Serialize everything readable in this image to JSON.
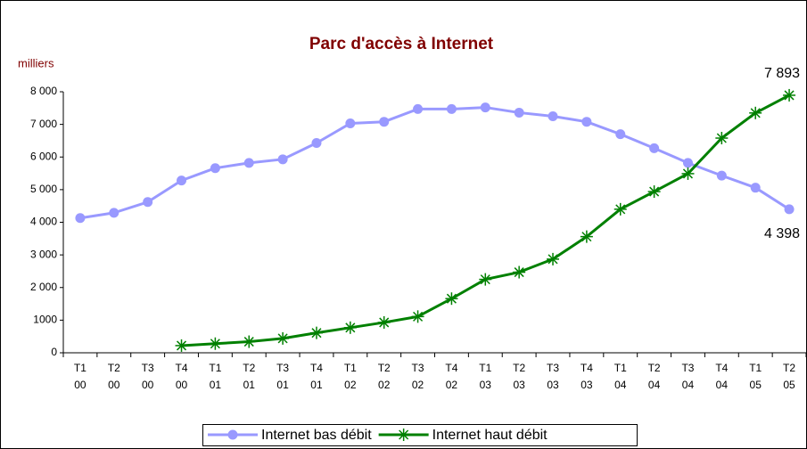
{
  "chart_data": {
    "type": "line",
    "title": "Parc d'accès à Internet",
    "y_label": "milliers",
    "categories": [
      "T1 00",
      "T2 00",
      "T3 00",
      "T4 00",
      "T1 01",
      "T2 01",
      "T3 01",
      "T4 01",
      "T1 02",
      "T2 02",
      "T3 02",
      "T4 02",
      "T1 03",
      "T2 03",
      "T3 03",
      "T4 03",
      "T1 04",
      "T2 04",
      "T3 04",
      "T4 04",
      "T1 05",
      "T2 05"
    ],
    "series": [
      {
        "name": "Internet bas débit",
        "color": "#9999ff",
        "marker": "circle",
        "values": [
          4130,
          4290,
          4620,
          5280,
          5660,
          5820,
          5930,
          6430,
          7030,
          7080,
          7470,
          7470,
          7520,
          7360,
          7250,
          7080,
          6700,
          6270,
          5820,
          5430,
          5060,
          4398
        ],
        "value_labels": [
          null,
          null,
          null,
          null,
          null,
          null,
          null,
          null,
          null,
          null,
          null,
          null,
          null,
          null,
          null,
          null,
          null,
          null,
          null,
          null,
          null,
          "4 398"
        ]
      },
      {
        "name": "Internet haut débit",
        "color": "#008000",
        "marker": "asterisk",
        "values": [
          null,
          null,
          null,
          220,
          280,
          340,
          440,
          610,
          770,
          930,
          1110,
          1660,
          2250,
          2470,
          2870,
          3560,
          4400,
          4940,
          5490,
          6580,
          7350,
          7893
        ],
        "value_labels": [
          null,
          null,
          null,
          null,
          null,
          null,
          null,
          null,
          null,
          null,
          null,
          null,
          null,
          null,
          null,
          null,
          null,
          null,
          null,
          null,
          null,
          "7 893"
        ]
      }
    ],
    "ylim": [
      0,
      8000
    ],
    "yticks": [
      0,
      1000,
      {
        "value": 2000,
        "label": "2 000"
      },
      {
        "value": 3000,
        "label": "3 000"
      },
      {
        "value": 4000,
        "label": "4 000"
      },
      {
        "value": 5000,
        "label": "5 000"
      },
      {
        "value": 6000,
        "label": "6 000"
      },
      {
        "value": 7000,
        "label": "7 000"
      },
      {
        "value": 8000,
        "label": "8 000"
      }
    ],
    "legend": "bottom"
  }
}
